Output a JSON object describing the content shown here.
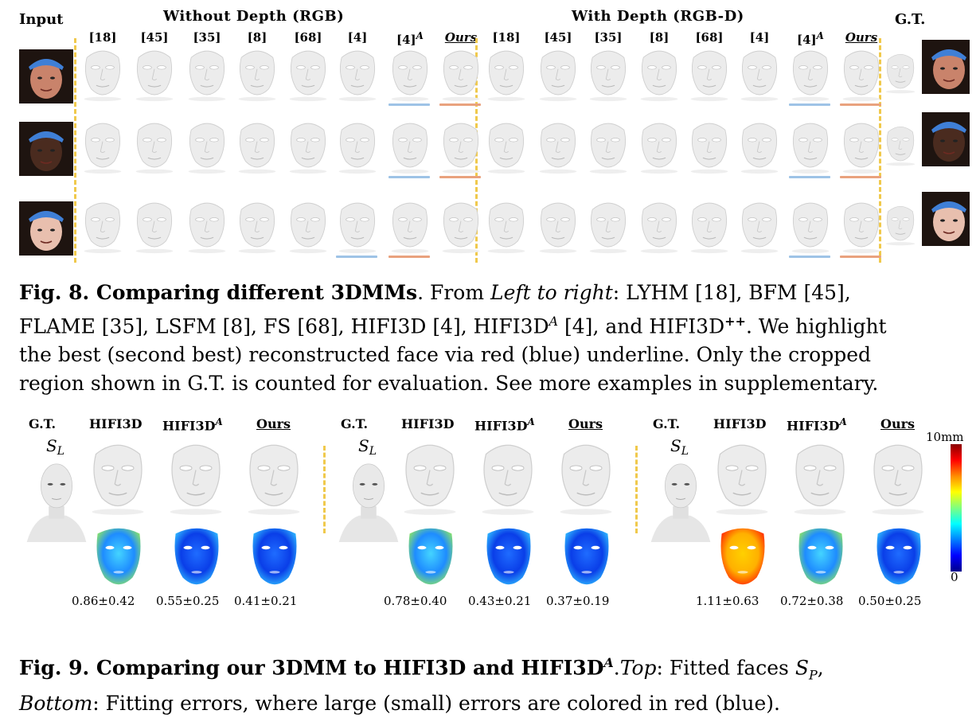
{
  "fig8": {
    "label_input": "Input",
    "group_rgb": "Without Depth (RGB)",
    "group_rgbd": "With Depth (RGB-D)",
    "label_gt": "G.T.",
    "columns": [
      "[18]",
      "[45]",
      "[35]",
      "[8]",
      "[68]",
      "[4]",
      "[4]",
      "Ours"
    ],
    "col_superscript": "A",
    "rows": [
      {
        "best_rgb": 7,
        "second_rgb": 6,
        "best_rgbd": 7,
        "second_rgbd": 6
      },
      {
        "best_rgb": 7,
        "second_rgb": 6,
        "best_rgbd": 7,
        "second_rgbd": 6
      },
      {
        "best_rgb": 6,
        "second_rgb": 5,
        "best_rgbd": 7,
        "second_rgbd": 6
      }
    ],
    "caption_title": "Fig. 8. Comparing different 3DMMs",
    "caption_text": [
      ". From ",
      "Left to right",
      ": LYHM [18], BFM [45],",
      "FLAME [35], LSFM [8], FS [68], HIFI3D [4], HIFI3D",
      "A",
      " [4], and HIFI3D",
      "++",
      ". We highlight",
      "the best (second best) reconstructed face via red (blue) underline. Only the cropped",
      "region shown in G.T. is counted for evaluation. See more examples in supplementary."
    ]
  },
  "fig9": {
    "groups": [
      {
        "gt": "G.T.",
        "sl": "S",
        "sl_sub": "L",
        "m1": "HIFI3D",
        "m2": "HIFI3D",
        "m2_sup": "A",
        "m3": "Ours",
        "scores": [
          "0.86±0.42",
          "0.55±0.25",
          "0.41±0.21"
        ],
        "heat": [
          0.55,
          0.25,
          0.15
        ]
      },
      {
        "gt": "G.T.",
        "sl": "S",
        "sl_sub": "L",
        "m1": "HIFI3D",
        "m2": "HIFI3D",
        "m2_sup": "A",
        "m3": "Ours",
        "scores": [
          "0.78±0.40",
          "0.43±0.21",
          "0.37±0.19"
        ],
        "heat": [
          0.5,
          0.2,
          0.15
        ]
      },
      {
        "gt": "G.T.",
        "sl": "S",
        "sl_sub": "L",
        "m1": "HIFI3D",
        "m2": "HIFI3D",
        "m2_sup": "A",
        "m3": "Ours",
        "scores": [
          "1.11±0.63",
          "0.72±0.38",
          "0.50±0.25"
        ],
        "heat": [
          0.85,
          0.45,
          0.25
        ]
      }
    ],
    "colorbar_max": "10mm",
    "colorbar_min": "0",
    "caption_title": "Fig. 9. Comparing our 3DMM to HIFI3D and HIFI3D",
    "caption_sup": "A",
    "caption_rest": [
      ".",
      "Top",
      ": Fitted faces ",
      "S",
      "P",
      ",",
      "Bottom",
      ": Fitting errors, where large (small) errors are colored in red (blue)."
    ]
  },
  "colors": {
    "best": "#e9a27e",
    "second": "#9ec3e6",
    "divider": "#f0c94c"
  }
}
